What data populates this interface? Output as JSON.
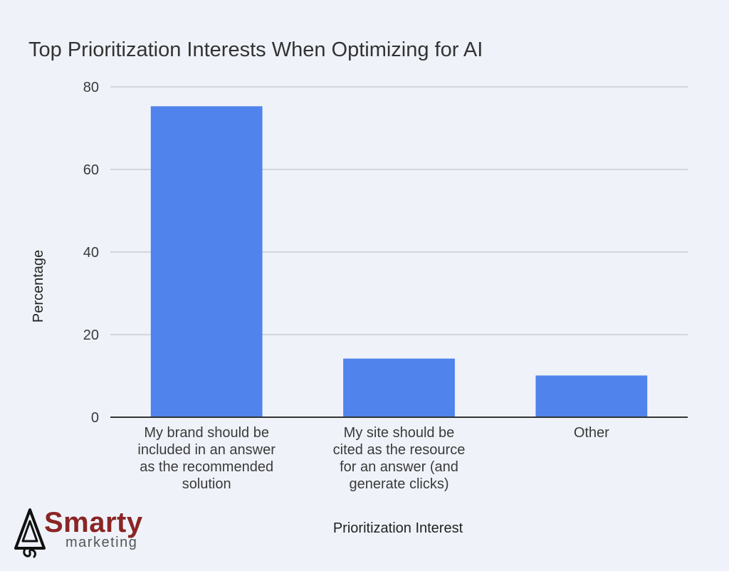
{
  "chart_data": {
    "type": "bar",
    "title": "Top Prioritization Interests When Optimizing for AI",
    "xlabel": "Prioritization Interest",
    "ylabel": "Percentage",
    "categories": [
      "My brand should be\nincluded in an answer\nas the recommended\nsolution",
      "My site should be\ncited as the resource\nfor an answer (and\ngenerate clicks)",
      "Other"
    ],
    "values": [
      75.3,
      14.2,
      10.1
    ],
    "ylim": [
      0,
      80
    ],
    "yticks": [
      0,
      20,
      40,
      60,
      80
    ],
    "grid": true,
    "legend": "none",
    "bar_color": "#5084ec"
  },
  "logo": {
    "word": "Smarty",
    "sub": "marketing"
  }
}
